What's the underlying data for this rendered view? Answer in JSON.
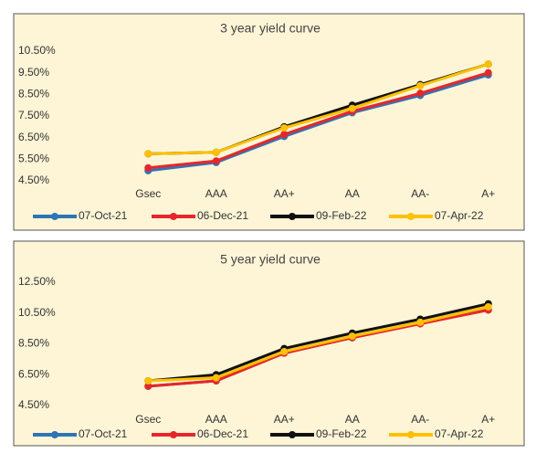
{
  "chart_data": [
    {
      "type": "line",
      "title": "3 year yield curve",
      "categories": [
        "Gsec",
        "AAA",
        "AA+",
        "AA",
        "AA-",
        "A+"
      ],
      "series": [
        {
          "name": "07-Oct-21",
          "color": "#2e75b6",
          "values": [
            4.97,
            5.35,
            6.55,
            7.65,
            8.45,
            9.4
          ]
        },
        {
          "name": "06-Dec-21",
          "color": "#e8262a",
          "values": [
            5.1,
            5.42,
            6.65,
            7.72,
            8.55,
            9.5
          ]
        },
        {
          "name": "09-Feb-22",
          "color": "#111111",
          "values": [
            5.75,
            5.82,
            7.0,
            8.0,
            8.95,
            9.9
          ]
        },
        {
          "name": "07-Apr-22",
          "color": "#ffc000",
          "values": [
            5.75,
            5.82,
            6.95,
            7.85,
            8.9,
            9.9
          ]
        }
      ],
      "ylim": [
        4.5,
        10.5
      ],
      "yticks": [
        {
          "value": 4.5,
          "label": "4.50%"
        },
        {
          "value": 5.5,
          "label": "5.50%"
        },
        {
          "value": 6.5,
          "label": "6.50%"
        },
        {
          "value": 7.5,
          "label": "7.50%"
        },
        {
          "value": 8.5,
          "label": "8.50%"
        },
        {
          "value": 9.5,
          "label": "9.50%"
        },
        {
          "value": 10.5,
          "label": "10.50%"
        }
      ]
    },
    {
      "type": "line",
      "title": "5 year yield curve",
      "categories": [
        "Gsec",
        "AAA",
        "AA+",
        "AA",
        "AA-",
        "A+"
      ],
      "series": [
        {
          "name": "07-Oct-21",
          "color": "#2e75b6",
          "values": [
            5.75,
            6.1,
            7.9,
            8.9,
            9.85,
            10.7
          ]
        },
        {
          "name": "06-Dec-21",
          "color": "#e8262a",
          "values": [
            5.75,
            6.1,
            7.9,
            8.9,
            9.8,
            10.7
          ]
        },
        {
          "name": "09-Feb-22",
          "color": "#111111",
          "values": [
            6.1,
            6.5,
            8.2,
            9.2,
            10.1,
            11.1
          ]
        },
        {
          "name": "07-Apr-22",
          "color": "#ffc000",
          "values": [
            6.1,
            6.3,
            8.0,
            9.0,
            9.9,
            10.9
          ]
        }
      ],
      "ylim": [
        4.5,
        12.5
      ],
      "yticks": [
        {
          "value": 4.5,
          "label": "4.50%"
        },
        {
          "value": 6.5,
          "label": "6.50%"
        },
        {
          "value": 8.5,
          "label": "8.50%"
        },
        {
          "value": 10.5,
          "label": "10.50%"
        },
        {
          "value": 12.5,
          "label": "12.50%"
        }
      ]
    }
  ]
}
